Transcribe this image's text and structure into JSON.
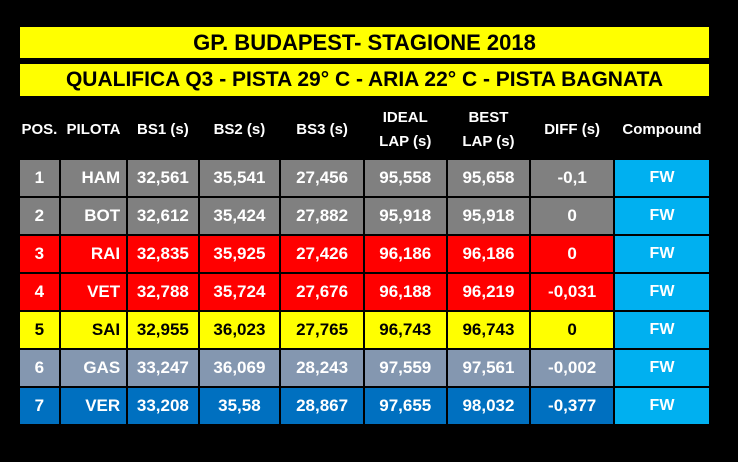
{
  "title": "GP. BUDAPEST- STAGIONE 2018",
  "subtitle": "QUALIFICA Q3 - PISTA 29° C  - ARIA 22° C - PISTA BAGNATA",
  "headers": {
    "pos": "POS.",
    "pilota": "PILOTA",
    "bs1": "BS1 (s)",
    "bs2": "BS2 (s)",
    "bs3": "BS3 (s)",
    "ideal_1": "IDEAL",
    "ideal_2": "LAP (s)",
    "best_1": "BEST",
    "best_2": "LAP (s)",
    "diff": "DIFF (s)",
    "compound": "Compound"
  },
  "colors": {
    "banner": "#FFFF00",
    "compound": "#00B0F0",
    "grey": "#808080",
    "red": "#FF0000",
    "yellow": "#FFFF00",
    "slate": "#8497B0",
    "blue": "#0070C0"
  },
  "rows": [
    {
      "pos": "1",
      "pilota": "HAM",
      "bs1": "32,561",
      "bs2": "35,541",
      "bs3": "27,456",
      "ideal": "95,558",
      "best": "95,658",
      "diff": "-0,1",
      "compound": "FW",
      "bg": "#808080",
      "fg": "#FFFFFF"
    },
    {
      "pos": "2",
      "pilota": "BOT",
      "bs1": "32,612",
      "bs2": "35,424",
      "bs3": "27,882",
      "ideal": "95,918",
      "best": "95,918",
      "diff": "0",
      "compound": "FW",
      "bg": "#808080",
      "fg": "#FFFFFF"
    },
    {
      "pos": "3",
      "pilota": "RAI",
      "bs1": "32,835",
      "bs2": "35,925",
      "bs3": "27,426",
      "ideal": "96,186",
      "best": "96,186",
      "diff": "0",
      "compound": "FW",
      "bg": "#FF0000",
      "fg": "#FFFFFF"
    },
    {
      "pos": "4",
      "pilota": "VET",
      "bs1": "32,788",
      "bs2": "35,724",
      "bs3": "27,676",
      "ideal": "96,188",
      "best": "96,219",
      "diff": "-0,031",
      "compound": "FW",
      "bg": "#FF0000",
      "fg": "#FFFFFF"
    },
    {
      "pos": "5",
      "pilota": "SAI",
      "bs1": "32,955",
      "bs2": "36,023",
      "bs3": "27,765",
      "ideal": "96,743",
      "best": "96,743",
      "diff": "0",
      "compound": "FW",
      "bg": "#FFFF00",
      "fg": "#000000"
    },
    {
      "pos": "6",
      "pilota": "GAS",
      "bs1": "33,247",
      "bs2": "36,069",
      "bs3": "28,243",
      "ideal": "97,559",
      "best": "97,561",
      "diff": "-0,002",
      "compound": "FW",
      "bg": "#8497B0",
      "fg": "#FFFFFF"
    },
    {
      "pos": "7",
      "pilota": "VER",
      "bs1": "33,208",
      "bs2": "35,58",
      "bs3": "28,867",
      "ideal": "97,655",
      "best": "98,032",
      "diff": "-0,377",
      "compound": "FW",
      "bg": "#0070C0",
      "fg": "#FFFFFF"
    }
  ]
}
